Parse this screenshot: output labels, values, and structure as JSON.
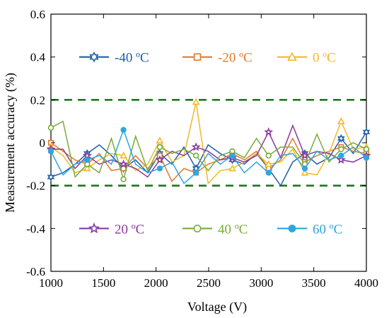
{
  "chart_data": {
    "type": "line",
    "title": "",
    "xlabel": "Voltage (V)",
    "ylabel": "Measurement accuracy (%)",
    "xlim": [
      1000,
      4000
    ],
    "ylim": [
      -0.6,
      0.6
    ],
    "xticks": [
      "1000",
      "1500",
      "2000",
      "2500",
      "3000",
      "3500",
      "4000"
    ],
    "yticks": [
      "0.6",
      "0.4",
      "0.2",
      "0",
      "-0.2",
      "-0.4",
      "-0.6"
    ],
    "grid": false,
    "reference_lines": {
      "values": [
        0.2,
        -0.2
      ],
      "color": "#1a7a1a",
      "style": "dashed"
    },
    "x": [
      1000,
      1115,
      1230,
      1345,
      1460,
      1575,
      1690,
      1805,
      1920,
      2035,
      2150,
      2265,
      2380,
      2495,
      2610,
      2725,
      2840,
      2955,
      3070,
      3185,
      3300,
      3415,
      3530,
      3645,
      3760,
      3875,
      4000
    ],
    "series": [
      {
        "name": "-40 ºC",
        "color": "#1f5fa8",
        "marker": "hexagram",
        "values": [
          -0.16,
          -0.14,
          -0.1,
          -0.05,
          -0.01,
          -0.06,
          -0.12,
          -0.08,
          -0.14,
          -0.05,
          -0.1,
          -0.02,
          -0.12,
          -0.01,
          -0.05,
          -0.08,
          -0.1,
          -0.05,
          -0.12,
          -0.2,
          -0.09,
          -0.05,
          -0.1,
          -0.07,
          0.02,
          -0.05,
          0.05
        ]
      },
      {
        "name": "-20 ºC",
        "color": "#e07a2a",
        "marker": "square",
        "values": [
          0.0,
          -0.04,
          -0.08,
          -0.1,
          -0.05,
          -0.13,
          -0.12,
          -0.06,
          -0.12,
          -0.06,
          -0.18,
          -0.12,
          -0.14,
          -0.1,
          -0.08,
          -0.05,
          -0.08,
          -0.04,
          -0.12,
          -0.08,
          0.02,
          -0.09,
          -0.06,
          -0.04,
          -0.02,
          -0.04,
          -0.05
        ]
      },
      {
        "name": "0 ºC",
        "color": "#f2b827",
        "marker": "triangle",
        "values": [
          -0.02,
          -0.06,
          -0.14,
          -0.12,
          -0.08,
          -0.05,
          -0.06,
          -0.13,
          -0.1,
          0.01,
          -0.09,
          -0.06,
          0.19,
          -0.19,
          -0.13,
          -0.12,
          -0.09,
          -0.05,
          -0.1,
          -0.09,
          -0.03,
          -0.14,
          -0.15,
          -0.05,
          0.1,
          -0.03,
          -0.02
        ]
      },
      {
        "name": "20 ºC",
        "color": "#8a3a9e",
        "marker": "pentagram",
        "values": [
          -0.03,
          -0.03,
          -0.12,
          -0.06,
          -0.1,
          -0.08,
          -0.1,
          -0.12,
          -0.16,
          -0.08,
          -0.04,
          -0.06,
          -0.02,
          -0.04,
          -0.08,
          -0.07,
          -0.09,
          -0.06,
          0.05,
          -0.07,
          0.08,
          -0.06,
          -0.04,
          -0.05,
          -0.08,
          -0.09,
          -0.06
        ]
      },
      {
        "name": "40 ºC",
        "color": "#7aaa3a",
        "marker": "circle",
        "values": [
          0.07,
          0.1,
          -0.16,
          -0.1,
          -0.14,
          0.02,
          -0.17,
          0.03,
          -0.13,
          -0.02,
          -0.05,
          -0.03,
          -0.06,
          -0.13,
          -0.06,
          -0.04,
          -0.07,
          0.02,
          -0.06,
          -0.02,
          -0.02,
          -0.1,
          0.04,
          -0.09,
          -0.03,
          0.0,
          -0.03
        ]
      },
      {
        "name": "60 ºC",
        "color": "#2fa6e0",
        "marker": "filled-circle",
        "values": [
          -0.04,
          -0.15,
          -0.1,
          -0.08,
          -0.06,
          -0.1,
          0.06,
          -0.1,
          -0.14,
          -0.12,
          -0.09,
          -0.19,
          -0.14,
          -0.05,
          -0.1,
          -0.06,
          -0.14,
          -0.09,
          -0.14,
          -0.06,
          -0.05,
          -0.12,
          -0.04,
          -0.08,
          -0.06,
          -0.02,
          -0.07
        ]
      }
    ],
    "legend": {
      "placement": "inside, two rows (upper and lower)",
      "rows": [
        [
          "-40 ºC",
          "-20 ºC",
          "0 ºC"
        ],
        [
          "20 ºC",
          "40 ºC",
          "60 ºC"
        ]
      ]
    }
  }
}
